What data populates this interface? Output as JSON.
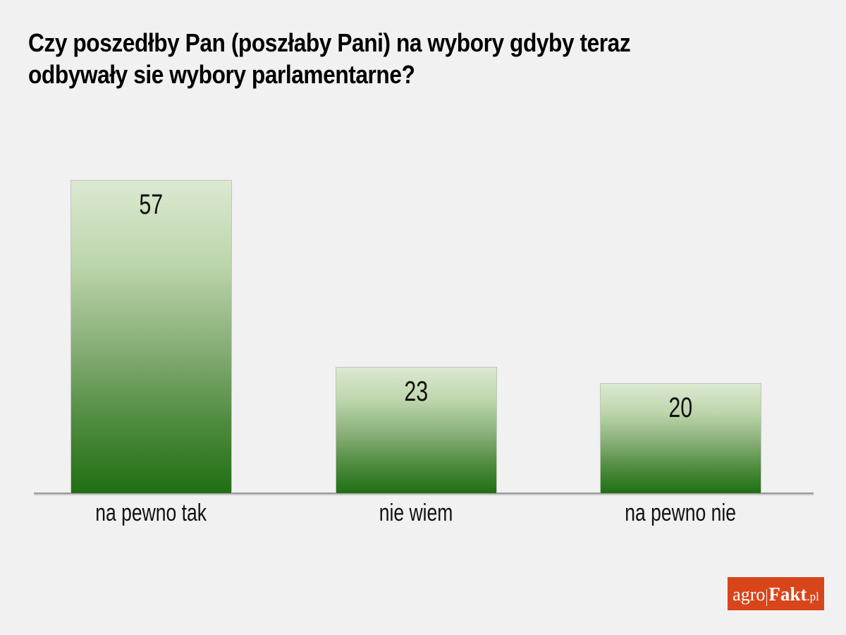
{
  "title": {
    "line1": "Czy poszedłby Pan (poszłaby Pani) na wybory gdyby teraz",
    "line2": "odbywały sie wybory parlamentarne?"
  },
  "chart_data": {
    "type": "bar",
    "title": "Czy poszedłby Pan (poszłaby Pani) na wybory gdyby teraz odbywały sie wybory parlamentarne?",
    "categories": [
      "na pewno tak",
      "nie wiem",
      "na pewno nie"
    ],
    "values": [
      57,
      23,
      20
    ],
    "value_labels": [
      "57",
      "23",
      "20"
    ],
    "xlabel": "",
    "ylabel": "",
    "ylim": [
      0,
      57
    ],
    "grid": false,
    "legend": false,
    "bar_style": {
      "gradient_top": "#dbe9d1",
      "gradient_bottom": "#206f14",
      "border": "#bfc5ba"
    }
  },
  "colors": {
    "background": "#f1f1f1",
    "axis": "#9a9a9a",
    "text": "#000000",
    "logo_background": "#d9451a"
  },
  "branding": {
    "logo_prefix": "agro",
    "logo_main": "Fakt",
    "logo_suffix": ".pl"
  }
}
